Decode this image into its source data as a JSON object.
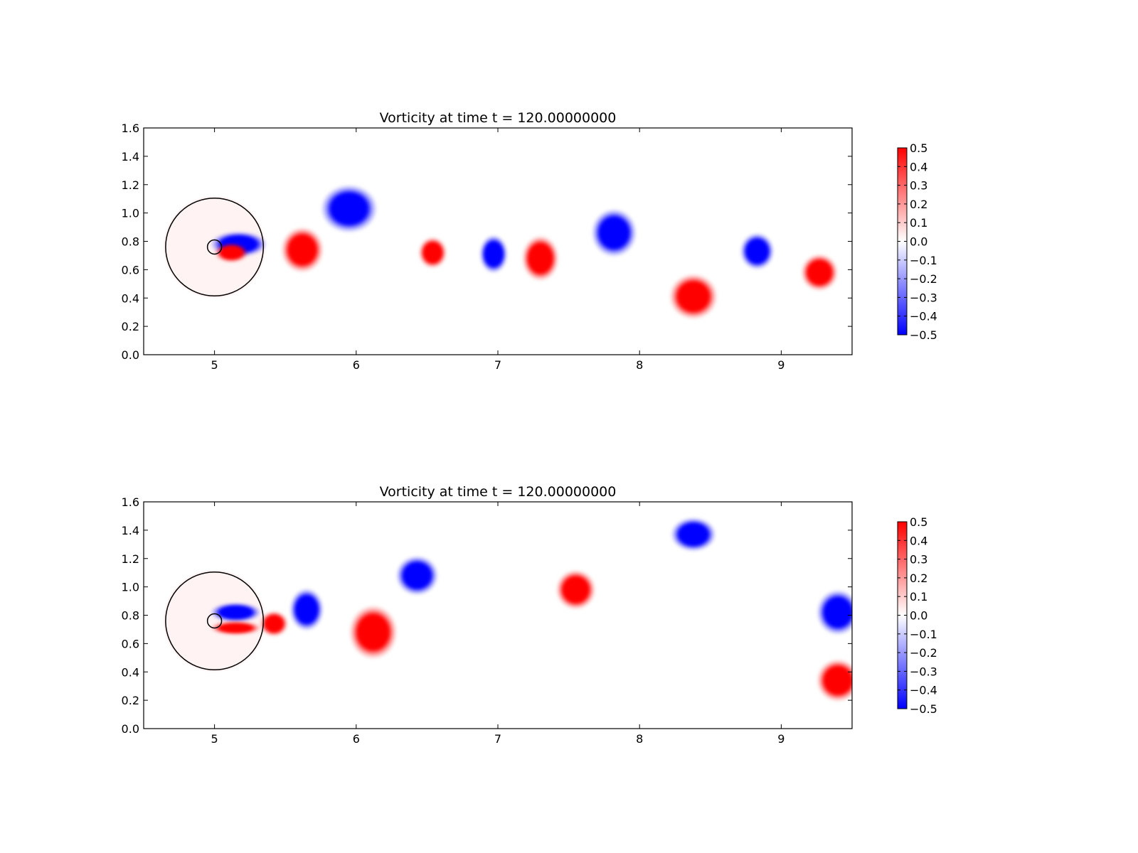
{
  "chart_data": [
    {
      "type": "heatmap",
      "title": "Vorticity at time t =   120.00000000",
      "xlabel": "",
      "ylabel": "",
      "xlim": [
        4.5,
        9.5
      ],
      "ylim": [
        0.0,
        1.6
      ],
      "xticks": [
        5,
        6,
        7,
        8,
        9
      ],
      "yticks": [
        0.0,
        0.2,
        0.4,
        0.6,
        0.8,
        1.0,
        1.2,
        1.4,
        1.6
      ],
      "colorbar": {
        "min": -0.5,
        "max": 0.5,
        "ticks": [
          0.5,
          0.4,
          0.3,
          0.2,
          0.1,
          0.0,
          -0.1,
          -0.2,
          -0.3,
          -0.4,
          -0.5
        ],
        "colormap": "bwr",
        "low_color": "#0000ff",
        "mid_color": "#ffffff",
        "high_color": "#ff0000"
      },
      "circles": [
        {
          "cx": 5.0,
          "cy": 0.76,
          "r": 0.345
        },
        {
          "cx": 5.0,
          "cy": 0.76,
          "r": 0.05
        }
      ],
      "vortices": [
        {
          "x": 5.95,
          "y": 1.03,
          "rx": 0.2,
          "ry": 0.17,
          "sign": "negative",
          "value": -0.5
        },
        {
          "x": 5.62,
          "y": 0.74,
          "rx": 0.15,
          "ry": 0.16,
          "sign": "positive",
          "value": 0.5
        },
        {
          "x": 6.54,
          "y": 0.72,
          "rx": 0.1,
          "ry": 0.11,
          "sign": "positive",
          "value": 0.5
        },
        {
          "x": 6.97,
          "y": 0.71,
          "rx": 0.1,
          "ry": 0.135,
          "sign": "negative",
          "value": -0.5
        },
        {
          "x": 7.3,
          "y": 0.68,
          "rx": 0.13,
          "ry": 0.16,
          "sign": "positive",
          "value": 0.5
        },
        {
          "x": 7.82,
          "y": 0.86,
          "rx": 0.16,
          "ry": 0.17,
          "sign": "negative",
          "value": -0.5
        },
        {
          "x": 8.38,
          "y": 0.41,
          "rx": 0.17,
          "ry": 0.16,
          "sign": "positive",
          "value": 0.5
        },
        {
          "x": 8.83,
          "y": 0.73,
          "rx": 0.12,
          "ry": 0.13,
          "sign": "negative",
          "value": -0.5
        },
        {
          "x": 9.27,
          "y": 0.58,
          "rx": 0.13,
          "ry": 0.13,
          "sign": "positive",
          "value": 0.5
        },
        {
          "x": 5.17,
          "y": 0.78,
          "rx": 0.2,
          "ry": 0.09,
          "sign": "negative",
          "value": -0.5
        },
        {
          "x": 5.12,
          "y": 0.72,
          "rx": 0.12,
          "ry": 0.07,
          "sign": "positive",
          "value": 0.5
        }
      ]
    },
    {
      "type": "heatmap",
      "title": "Vorticity at time t =   120.00000000",
      "xlabel": "",
      "ylabel": "",
      "xlim": [
        4.5,
        9.5
      ],
      "ylim": [
        0.0,
        1.6
      ],
      "xticks": [
        5,
        6,
        7,
        8,
        9
      ],
      "yticks": [
        0.0,
        0.2,
        0.4,
        0.6,
        0.8,
        1.0,
        1.2,
        1.4,
        1.6
      ],
      "colorbar": {
        "min": -0.5,
        "max": 0.5,
        "ticks": [
          0.5,
          0.4,
          0.3,
          0.2,
          0.1,
          0.0,
          -0.1,
          -0.2,
          -0.3,
          -0.4,
          -0.5
        ],
        "colormap": "bwr",
        "low_color": "#0000ff",
        "mid_color": "#ffffff",
        "high_color": "#ff0000"
      },
      "circles": [
        {
          "cx": 5.0,
          "cy": 0.76,
          "r": 0.345
        },
        {
          "cx": 5.0,
          "cy": 0.76,
          "r": 0.05
        }
      ],
      "vortices": [
        {
          "x": 5.65,
          "y": 0.84,
          "rx": 0.12,
          "ry": 0.15,
          "sign": "negative",
          "value": -0.5
        },
        {
          "x": 6.12,
          "y": 0.68,
          "rx": 0.17,
          "ry": 0.19,
          "sign": "positive",
          "value": 0.5
        },
        {
          "x": 6.43,
          "y": 1.08,
          "rx": 0.15,
          "ry": 0.14,
          "sign": "negative",
          "value": -0.5
        },
        {
          "x": 7.55,
          "y": 0.98,
          "rx": 0.14,
          "ry": 0.14,
          "sign": "positive",
          "value": 0.5
        },
        {
          "x": 8.38,
          "y": 1.37,
          "rx": 0.16,
          "ry": 0.12,
          "sign": "negative",
          "value": -0.5
        },
        {
          "x": 9.4,
          "y": 0.82,
          "rx": 0.15,
          "ry": 0.16,
          "sign": "negative",
          "value": -0.5
        },
        {
          "x": 9.4,
          "y": 0.34,
          "rx": 0.15,
          "ry": 0.15,
          "sign": "positive",
          "value": 0.5
        },
        {
          "x": 5.42,
          "y": 0.74,
          "rx": 0.1,
          "ry": 0.09,
          "sign": "positive",
          "value": 0.5
        },
        {
          "x": 5.15,
          "y": 0.82,
          "rx": 0.18,
          "ry": 0.07,
          "sign": "negative",
          "value": -0.5
        },
        {
          "x": 5.15,
          "y": 0.71,
          "rx": 0.18,
          "ry": 0.05,
          "sign": "positive",
          "value": 0.5
        }
      ]
    }
  ]
}
